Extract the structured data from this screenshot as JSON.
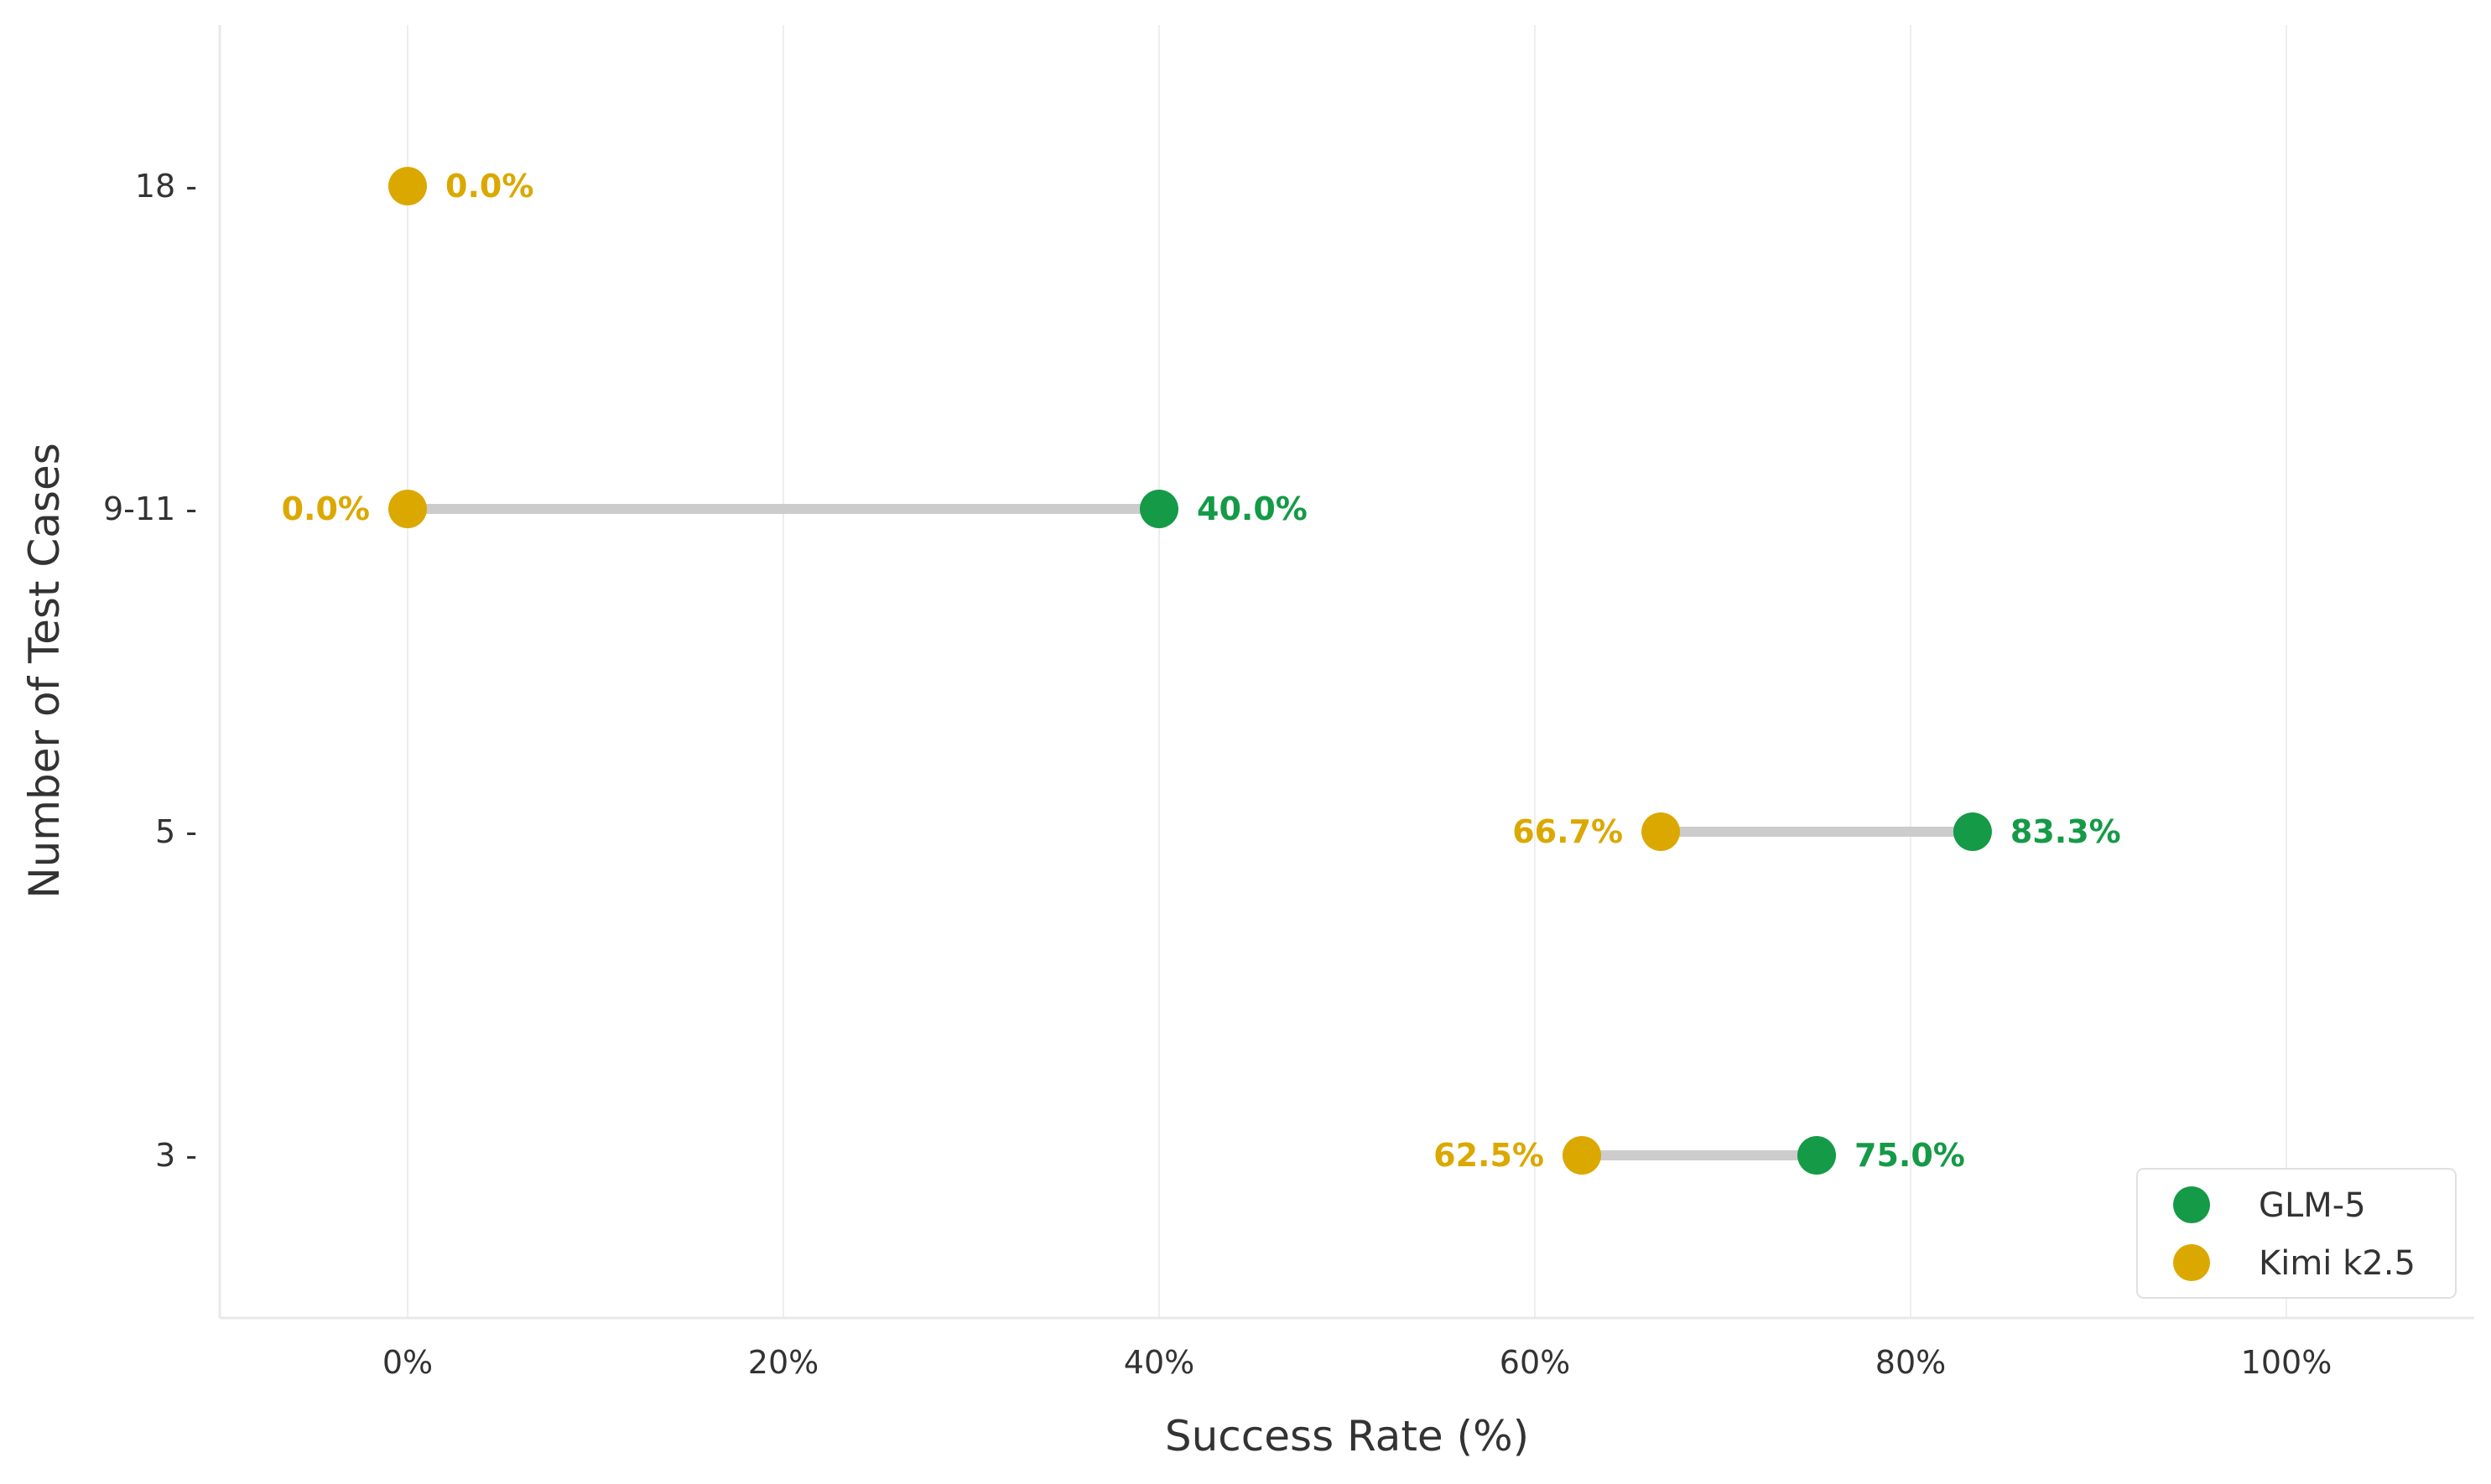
{
  "chart_data": {
    "type": "dumbbell",
    "xlabel": "Success Rate (%)",
    "ylabel": "Number of Test Cases",
    "xlim": [
      -10,
      110
    ],
    "x_ticks": [
      0,
      20,
      40,
      60,
      80,
      100
    ],
    "x_tick_labels": [
      "0%",
      "20%",
      "40%",
      "60%",
      "80%",
      "100%"
    ],
    "categories": [
      "18",
      "9-11",
      "5",
      "3"
    ],
    "series": [
      {
        "name": "GLM-5",
        "color": "#159a47",
        "values": [
          null,
          40.0,
          83.3,
          75.0
        ],
        "labels": [
          "",
          "40.0%",
          "83.3%",
          "75.0%"
        ]
      },
      {
        "name": "Kimi k2.5",
        "color": "#dba800",
        "values": [
          0.0,
          0.0,
          66.7,
          62.5
        ],
        "labels": [
          "0.0%",
          "0.0%",
          "66.7%",
          "62.5%"
        ]
      }
    ],
    "grid": "vertical",
    "legend": "bottom-right",
    "connector_color": "#cccccc"
  }
}
